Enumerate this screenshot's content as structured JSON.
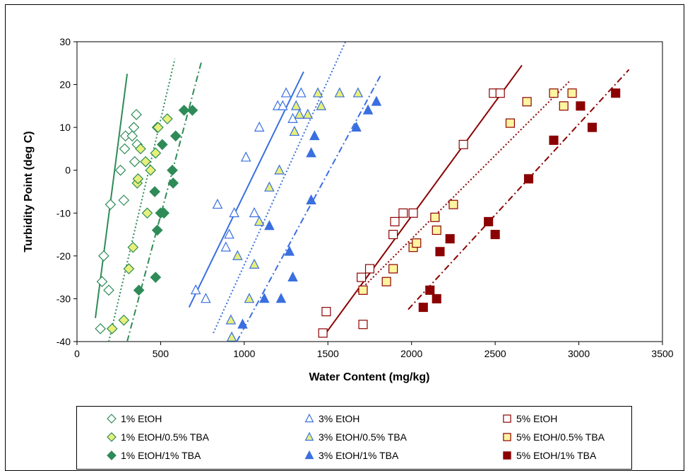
{
  "chart_data": {
    "type": "scatter",
    "title": "",
    "xlabel": "Water Content (mg/kg)",
    "ylabel": "Turbidity Point (deg C)",
    "xlim": [
      0,
      3500
    ],
    "ylim": [
      -40,
      30
    ],
    "x_ticks": [
      0,
      500,
      1000,
      1500,
      2000,
      2500,
      3000,
      3500
    ],
    "y_ticks": [
      -40,
      -30,
      -20,
      -10,
      0,
      10,
      20,
      30
    ],
    "grid": false,
    "legend_position": "bottom",
    "series": [
      {
        "name": "1% EtOH",
        "color": "#2e8b57",
        "marker": "diamond",
        "fill": "open",
        "points": [
          [
            140,
            -37
          ],
          [
            150,
            -26
          ],
          [
            160,
            -20
          ],
          [
            190,
            -28
          ],
          [
            200,
            -8
          ],
          [
            260,
            0
          ],
          [
            280,
            -7
          ],
          [
            285,
            5
          ],
          [
            290,
            8
          ],
          [
            330,
            8
          ],
          [
            340,
            10
          ],
          [
            345,
            2
          ],
          [
            355,
            13
          ],
          [
            360,
            6
          ]
        ],
        "fit": {
          "style": "solid",
          "from": [
            110,
            -34.5
          ],
          "to": [
            300,
            22.5
          ]
        }
      },
      {
        "name": "1% EtOH/0.5% TBA",
        "color": "#2e8b57",
        "marker": "diamond",
        "fill": "#e6f07a",
        "points": [
          [
            210,
            -37
          ],
          [
            280,
            -35
          ],
          [
            310,
            -23
          ],
          [
            335,
            -18
          ],
          [
            360,
            -3
          ],
          [
            365,
            -2
          ],
          [
            380,
            5
          ],
          [
            410,
            2
          ],
          [
            420,
            -10
          ],
          [
            440,
            0
          ],
          [
            470,
            4
          ],
          [
            480,
            10
          ],
          [
            485,
            10
          ],
          [
            540,
            12
          ]
        ],
        "fit": {
          "style": "dotted",
          "from": [
            190,
            -40
          ],
          "to": [
            585,
            26
          ]
        }
      },
      {
        "name": "1% EtOH/1% TBA",
        "color": "#2e8b57",
        "marker": "diamond",
        "fill": "#2e8b57",
        "points": [
          [
            370,
            -28
          ],
          [
            470,
            -25
          ],
          [
            465,
            -5
          ],
          [
            480,
            -14
          ],
          [
            500,
            -10
          ],
          [
            510,
            6
          ],
          [
            520,
            -10
          ],
          [
            570,
            0
          ],
          [
            575,
            -3
          ],
          [
            590,
            8
          ],
          [
            640,
            14
          ],
          [
            690,
            14
          ]
        ],
        "fit": {
          "style": "dashdot",
          "from": [
            300,
            -40
          ],
          "to": [
            745,
            25.5
          ]
        }
      },
      {
        "name": "3% EtOH",
        "color": "#3a6fe0",
        "marker": "triangle",
        "fill": "open",
        "points": [
          [
            710,
            -28
          ],
          [
            770,
            -30
          ],
          [
            840,
            -8
          ],
          [
            890,
            -18
          ],
          [
            910,
            -15
          ],
          [
            940,
            -10
          ],
          [
            1010,
            3
          ],
          [
            1060,
            -10
          ],
          [
            1090,
            10
          ],
          [
            1200,
            15
          ],
          [
            1230,
            15
          ],
          [
            1250,
            18
          ],
          [
            1290,
            12
          ],
          [
            1340,
            18
          ]
        ],
        "fit": {
          "style": "solid",
          "from": [
            670,
            -32
          ],
          "to": [
            1355,
            23
          ]
        }
      },
      {
        "name": "3% EtOH/0.5% TBA",
        "color": "#3a6fe0",
        "marker": "triangle",
        "fill": "#e6f07a",
        "points": [
          [
            920,
            -35
          ],
          [
            925,
            -39
          ],
          [
            960,
            -20
          ],
          [
            1030,
            -30
          ],
          [
            1060,
            -22
          ],
          [
            1090,
            -12
          ],
          [
            1150,
            -4
          ],
          [
            1210,
            0
          ],
          [
            1300,
            9
          ],
          [
            1310,
            15
          ],
          [
            1330,
            13
          ],
          [
            1380,
            13
          ],
          [
            1440,
            18
          ],
          [
            1460,
            15
          ],
          [
            1570,
            18
          ],
          [
            1680,
            18
          ]
        ],
        "fit": {
          "style": "dotted",
          "from": [
            815,
            -38
          ],
          "to": [
            1605,
            30
          ]
        }
      },
      {
        "name": "3% EtOH/1% TBA",
        "color": "#3a6fe0",
        "marker": "triangle",
        "fill": "#3a6fe0",
        "points": [
          [
            990,
            -36
          ],
          [
            1120,
            -30
          ],
          [
            1150,
            -13
          ],
          [
            1220,
            -30
          ],
          [
            1270,
            -19
          ],
          [
            1290,
            -25
          ],
          [
            1400,
            -7
          ],
          [
            1400,
            4
          ],
          [
            1420,
            8
          ],
          [
            1670,
            10
          ],
          [
            1740,
            14
          ],
          [
            1790,
            16
          ]
        ],
        "fit": {
          "style": "dashdot",
          "from": [
            955,
            -40
          ],
          "to": [
            1820,
            22.5
          ]
        }
      },
      {
        "name": "5% EtOH",
        "color": "#8b0000",
        "marker": "square",
        "fill": "open",
        "points": [
          [
            1470,
            -38
          ],
          [
            1490,
            -33
          ],
          [
            1700,
            -25
          ],
          [
            1710,
            -36
          ],
          [
            1750,
            -23
          ],
          [
            1890,
            -15
          ],
          [
            1900,
            -12
          ],
          [
            1950,
            -10
          ],
          [
            2010,
            -10
          ],
          [
            2310,
            6
          ],
          [
            2490,
            18
          ],
          [
            2530,
            18
          ]
        ],
        "fit": {
          "style": "solid",
          "from": [
            1470,
            -39
          ],
          "to": [
            2660,
            24.5
          ]
        }
      },
      {
        "name": "5% EtOH/0.5% TBA",
        "color": "#8b0000",
        "marker": "square",
        "fill": "#fff4a0",
        "points": [
          [
            1710,
            -28
          ],
          [
            1850,
            -26
          ],
          [
            1890,
            -23
          ],
          [
            2010,
            -18
          ],
          [
            2030,
            -17
          ],
          [
            2140,
            -11
          ],
          [
            2150,
            -14
          ],
          [
            2250,
            -8
          ],
          [
            2590,
            11
          ],
          [
            2690,
            16
          ],
          [
            2850,
            18
          ],
          [
            2910,
            15
          ],
          [
            2960,
            18
          ]
        ],
        "fit": {
          "style": "dotted",
          "from": [
            1680,
            -28.5
          ],
          "to": [
            2950,
            21
          ]
        }
      },
      {
        "name": "5% EtOH/1% TBA",
        "color": "#8b0000",
        "marker": "square",
        "fill": "#8b0000",
        "points": [
          [
            2070,
            -32
          ],
          [
            2110,
            -28
          ],
          [
            2150,
            -30
          ],
          [
            2170,
            -19
          ],
          [
            2230,
            -16
          ],
          [
            2460,
            -12
          ],
          [
            2500,
            -15
          ],
          [
            2700,
            -2
          ],
          [
            2850,
            7
          ],
          [
            3010,
            15
          ],
          [
            3080,
            10
          ],
          [
            3220,
            18
          ]
        ],
        "fit": {
          "style": "dashdot",
          "from": [
            1980,
            -32.5
          ],
          "to": [
            3300,
            23.5
          ]
        }
      }
    ]
  }
}
